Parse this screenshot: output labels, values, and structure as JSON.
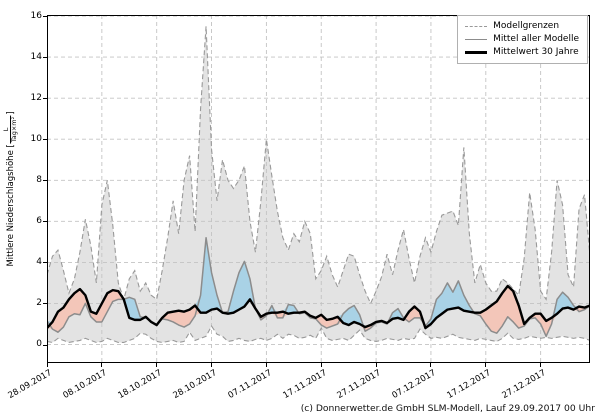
{
  "meta": {
    "footer": "(c) Donnerwetter.de GmbH SLM-Modell, Lauf 29.09.2017 00 Uhr"
  },
  "chart_data": {
    "type": "line",
    "title": "",
    "xlabel": "",
    "ylabel": "Mittlere Niederschlagshöhe [L/(Tag×m²)]",
    "ylabel_parts": {
      "prefix": "Mittlere Niederschlagshöhe [",
      "frac_num": "L",
      "frac_den": "Tag×m²",
      "suffix": "]"
    },
    "grid": "dashed, both axes",
    "legend_position": "upper right",
    "x_axis": {
      "start_date": "28.09.2017",
      "n_points": 100,
      "interval": "daily",
      "tick_days": [
        0,
        10,
        20,
        30,
        40,
        50,
        60,
        70,
        80,
        90
      ],
      "tick_labels": [
        "28.09.2017",
        "08.10.2017",
        "18.10.2017",
        "28.10.2017",
        "07.11.2017",
        "17.11.2017",
        "27.11.2017",
        "07.12.2017",
        "17.12.2017",
        "27.12.2017"
      ]
    },
    "y_axis": {
      "ticks": [
        0,
        2,
        4,
        6,
        8,
        10,
        12,
        14,
        16
      ],
      "lim": [
        -0.9,
        16.05
      ]
    },
    "legend": [
      {
        "label": "Modellgrenzen",
        "style": "dashed-gray"
      },
      {
        "label": "Mittel aller Modelle",
        "style": "solid-gray"
      },
      {
        "label": "Mittelwert 30 Jahre",
        "style": "solid-black"
      }
    ],
    "colors": {
      "band_fill": "#e3e3e3",
      "boundary_line": "#999999",
      "model_mean_line": "#8c8c8c",
      "mean30_line": "#000000",
      "fill_above_mean": "#a9d2e6",
      "fill_below_mean": "#f3c6b9",
      "grid": "#c3c3c3",
      "frame": "#000000"
    },
    "series": [
      {
        "name": "Modellgrenzen (obere Grenze)",
        "values": [
          3.4,
          4.3,
          4.6,
          3.6,
          2.5,
          3.2,
          4.5,
          6.1,
          4.8,
          3.0,
          6.8,
          8.0,
          5.8,
          3.0,
          2.2,
          3.2,
          3.6,
          2.6,
          3.0,
          2.4,
          2.2,
          3.6,
          5.2,
          7.0,
          5.4,
          8.0,
          9.2,
          5.5,
          11.5,
          15.5,
          9.5,
          7.0,
          9.0,
          8.0,
          7.6,
          8.0,
          8.7,
          6.0,
          4.5,
          7.0,
          10.0,
          8.2,
          6.5,
          5.2,
          4.6,
          5.4,
          5.0,
          6.0,
          5.4,
          3.2,
          3.6,
          4.3,
          3.4,
          2.8,
          3.6,
          4.4,
          4.3,
          3.4,
          2.6,
          2.0,
          2.6,
          3.3,
          4.4,
          3.4,
          4.6,
          5.6,
          4.2,
          3.0,
          4.3,
          5.2,
          4.5,
          5.5,
          6.3,
          6.4,
          6.5,
          5.8,
          9.6,
          5.4,
          3.0,
          3.9,
          3.0,
          2.6,
          2.6,
          3.2,
          3.0,
          2.7,
          2.4,
          4.2,
          7.4,
          5.6,
          2.6,
          2.2,
          4.5,
          8.0,
          6.8,
          3.4,
          2.8,
          6.6,
          7.3,
          4.3
        ]
      },
      {
        "name": "Modellgrenzen (untere Grenze)",
        "values": [
          0.15,
          0.1,
          0.3,
          0.2,
          0.1,
          0.15,
          0.2,
          0.3,
          0.2,
          0.1,
          0.15,
          0.3,
          0.2,
          0.1,
          0.1,
          0.2,
          0.3,
          0.55,
          0.5,
          0.3,
          0.15,
          0.1,
          0.15,
          0.2,
          0.1,
          0.15,
          0.6,
          0.2,
          0.3,
          0.4,
          0.9,
          0.5,
          0.4,
          0.15,
          0.2,
          0.3,
          0.2,
          0.15,
          0.25,
          0.3,
          0.2,
          0.3,
          0.5,
          0.3,
          0.5,
          0.45,
          0.3,
          0.35,
          0.45,
          0.3,
          0.8,
          0.3,
          0.2,
          0.25,
          0.3,
          0.2,
          0.45,
          0.7,
          0.3,
          0.2,
          0.15,
          0.2,
          0.3,
          0.25,
          0.2,
          0.3,
          0.25,
          0.3,
          0.75,
          0.5,
          0.3,
          0.35,
          0.3,
          0.4,
          0.5,
          0.35,
          0.3,
          0.25,
          0.2,
          0.3,
          0.25,
          0.2,
          0.15,
          0.3,
          0.55,
          0.3,
          0.25,
          0.3,
          0.4,
          0.35,
          0.3,
          0.35,
          0.3,
          0.35,
          0.4,
          0.35,
          0.3,
          0.35,
          0.3,
          0.2
        ]
      },
      {
        "name": "Mittel aller Modelle",
        "values": [
          1.15,
          0.75,
          0.6,
          0.85,
          1.35,
          1.5,
          1.45,
          2.0,
          1.35,
          1.1,
          1.1,
          1.6,
          2.1,
          2.2,
          2.2,
          2.3,
          2.2,
          1.35,
          1.3,
          1.1,
          0.95,
          1.25,
          1.2,
          1.1,
          0.95,
          0.85,
          1.0,
          1.4,
          2.4,
          5.2,
          3.5,
          2.4,
          1.55,
          1.6,
          2.6,
          3.5,
          4.05,
          3.2,
          1.75,
          1.2,
          1.4,
          1.9,
          1.3,
          1.3,
          1.95,
          1.9,
          1.5,
          1.55,
          1.3,
          1.25,
          0.95,
          0.8,
          0.9,
          1.0,
          1.5,
          1.75,
          1.9,
          1.45,
          0.65,
          0.8,
          1.05,
          1.1,
          1.0,
          1.55,
          1.75,
          1.3,
          1.1,
          1.3,
          1.3,
          0.9,
          1.25,
          2.2,
          2.5,
          3.0,
          2.55,
          3.1,
          2.4,
          1.9,
          1.5,
          1.4,
          1.0,
          0.65,
          0.55,
          0.9,
          1.35,
          1.1,
          0.8,
          0.9,
          1.25,
          1.3,
          1.0,
          0.4,
          1.0,
          2.2,
          2.55,
          2.3,
          1.9,
          1.6,
          1.7,
          1.9
        ]
      },
      {
        "name": "Mittelwert 30 Jahre",
        "values": [
          0.8,
          1.1,
          1.6,
          1.8,
          2.2,
          2.5,
          2.7,
          2.4,
          1.6,
          1.5,
          2.0,
          2.5,
          2.65,
          2.6,
          2.2,
          1.3,
          1.2,
          1.2,
          1.35,
          1.1,
          0.95,
          1.3,
          1.55,
          1.6,
          1.65,
          1.6,
          1.7,
          1.9,
          1.55,
          1.55,
          1.7,
          1.75,
          1.55,
          1.5,
          1.55,
          1.7,
          1.85,
          2.2,
          1.75,
          1.35,
          1.5,
          1.55,
          1.55,
          1.6,
          1.5,
          1.55,
          1.55,
          1.6,
          1.4,
          1.3,
          1.45,
          1.2,
          1.25,
          1.35,
          1.05,
          0.95,
          1.1,
          1.0,
          0.85,
          0.95,
          1.1,
          1.15,
          1.05,
          1.25,
          1.3,
          1.2,
          1.6,
          1.85,
          1.6,
          0.8,
          1.0,
          1.3,
          1.5,
          1.7,
          1.75,
          1.8,
          1.65,
          1.6,
          1.55,
          1.55,
          1.7,
          1.9,
          2.1,
          2.5,
          2.85,
          2.6,
          1.9,
          1.0,
          1.3,
          1.5,
          1.5,
          1.15,
          1.3,
          1.5,
          1.75,
          1.8,
          1.7,
          1.85,
          1.8,
          1.9
        ]
      }
    ]
  }
}
